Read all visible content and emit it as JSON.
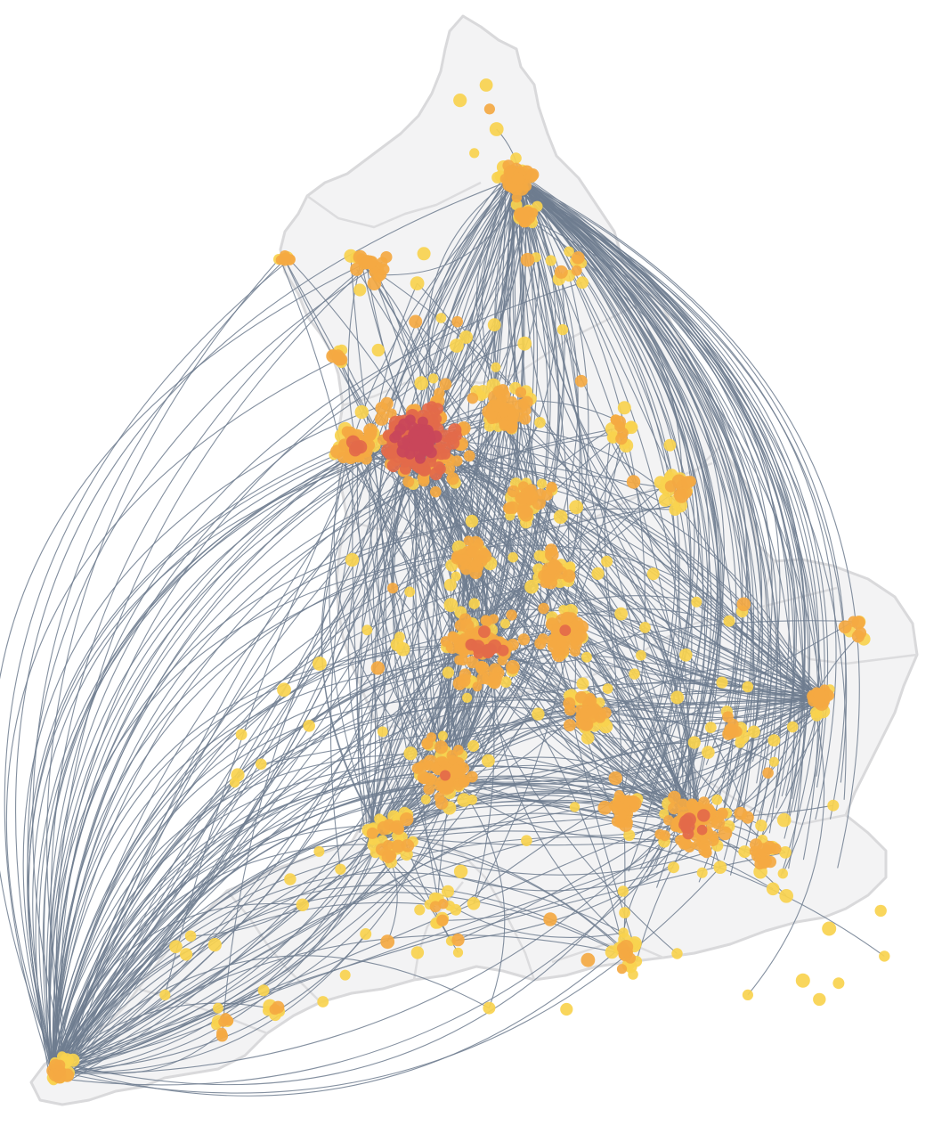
{
  "map": {
    "colors": {
      "land": "#f3f3f4",
      "border": "#d9d9db",
      "flow_line": "#6f7d8f",
      "node_low": "#f9d34e",
      "node_mid": "#f4a942",
      "node_high": "#e36a4a",
      "node_peak": "#c9465a"
    },
    "flow_opacity": 0.85,
    "node_opacity": 0.92
  }
}
